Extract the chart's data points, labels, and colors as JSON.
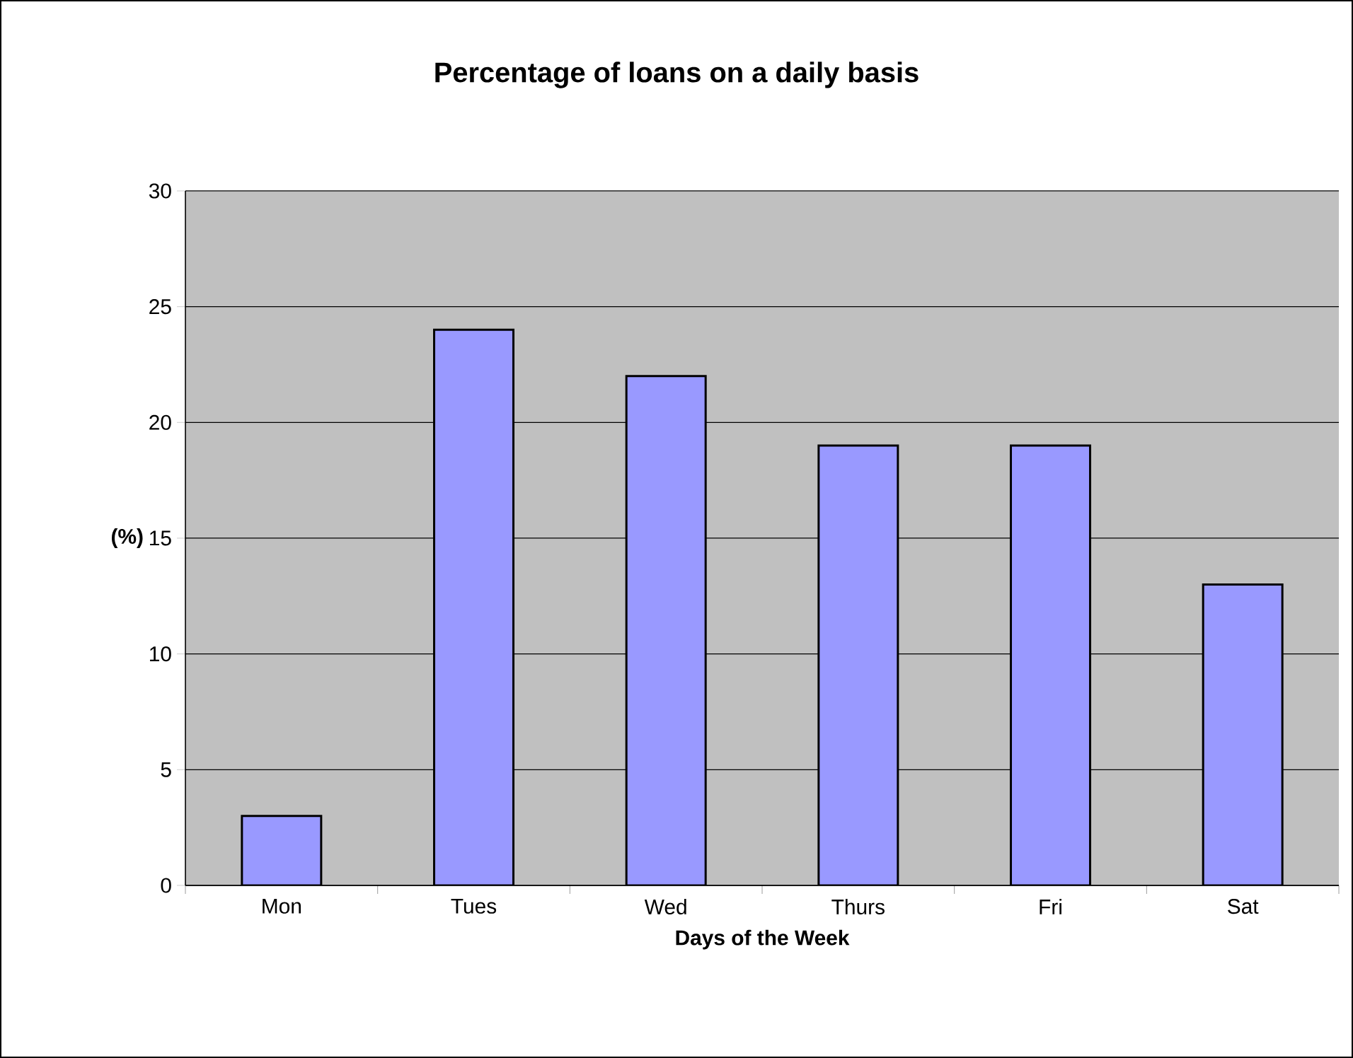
{
  "chart_data": {
    "type": "bar",
    "title": "Percentage of loans on a daily basis",
    "xlabel": "Days of the Week",
    "ylabel": "(%)",
    "categories": [
      "Mon",
      "Tues",
      "Wed",
      "Thurs",
      "Fri",
      "Sat"
    ],
    "values": [
      3,
      24,
      22,
      19,
      19,
      13
    ],
    "color": "#9999ff",
    "ylim": [
      0,
      30
    ],
    "yticks": [
      0,
      5,
      10,
      15,
      20,
      25,
      30
    ],
    "grid": "y"
  }
}
